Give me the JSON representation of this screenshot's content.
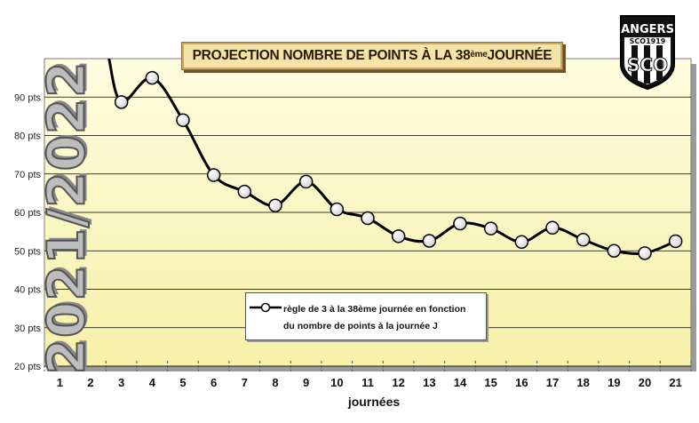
{
  "chart_data": {
    "type": "line",
    "title": "PROJECTION NOMBRE DE POINTS À LA 38",
    "title_sup": "ème",
    "title_end": " JOURNÉE",
    "watermark": "2021/2022",
    "xlabel": "journées",
    "ylabel": "",
    "categories": [
      "1",
      "2",
      "3",
      "4",
      "5",
      "6",
      "7",
      "8",
      "9",
      "10",
      "11",
      "12",
      "13",
      "14",
      "15",
      "16",
      "17",
      "18",
      "19",
      "20",
      "21"
    ],
    "y_tick_labels": [
      "20 pts",
      "30 pts",
      "40 pts",
      "50 pts",
      "60 pts",
      "70 pts",
      "80 pts",
      "90 pts"
    ],
    "y_ticks": [
      20,
      30,
      40,
      50,
      60,
      70,
      80,
      90
    ],
    "ylim": [
      20,
      100
    ],
    "grid": true,
    "legend_position": "bottom-center",
    "series": [
      {
        "name": "règle de 3 à la 38ème journée en fonction du nombre de points à la journée J",
        "name_line1": "règle de 3 à la 38ème journée en fonction",
        "name_line2": "du nombre de points à la journée J",
        "x": [
          3,
          4,
          5,
          6,
          7,
          8,
          9,
          10,
          11,
          12,
          13,
          14,
          15,
          16,
          17,
          18,
          19,
          20,
          21
        ],
        "values": [
          88.7,
          95,
          84,
          69.7,
          65.4,
          61.8,
          68,
          60.8,
          58.5,
          53.8,
          52.6,
          57.1,
          55.8,
          52.3,
          56,
          52.9,
          50,
          49.4,
          52.5
        ],
        "line_color": "#000000",
        "marker_fill": "#ffffff"
      }
    ],
    "plot_background": "#fcf9c4",
    "logo_text_top": "ANGERS",
    "logo_text_mid": "SCO1919",
    "logo_text_bottom": "SCO"
  }
}
